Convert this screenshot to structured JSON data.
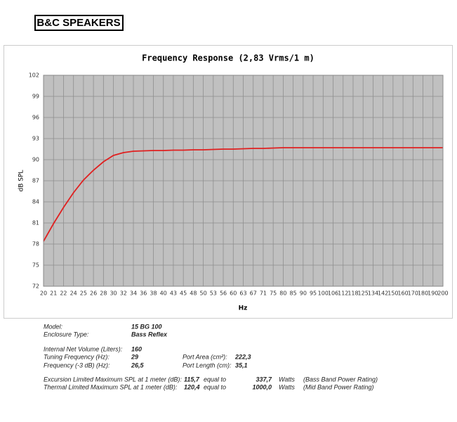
{
  "logo": "B&C SPEAKERS",
  "chart_data": {
    "type": "line",
    "title": "Frequency Response (2,83 Vrms/1 m)",
    "x_label": "Hz",
    "y_label": "dB SPL",
    "categories": [
      "20",
      "21",
      "22",
      "24",
      "25",
      "26",
      "28",
      "30",
      "32",
      "34",
      "36",
      "38",
      "40",
      "43",
      "45",
      "48",
      "50",
      "53",
      "56",
      "60",
      "63",
      "67",
      "71",
      "75",
      "80",
      "85",
      "90",
      "95",
      "100",
      "106",
      "112",
      "118",
      "125",
      "134",
      "142",
      "150",
      "160",
      "170",
      "180",
      "190",
      "200"
    ],
    "series": [
      {
        "name": "15 BG 100",
        "color": "#e02020",
        "values": [
          78.4,
          80.9,
          83.2,
          85.3,
          87.1,
          88.5,
          89.7,
          90.6,
          91.0,
          91.2,
          91.25,
          91.3,
          91.3,
          91.35,
          91.35,
          91.4,
          91.4,
          91.45,
          91.5,
          91.5,
          91.55,
          91.6,
          91.6,
          91.65,
          91.7,
          91.7,
          91.7,
          91.7,
          91.7,
          91.7,
          91.7,
          91.7,
          91.7,
          91.7,
          91.7,
          91.7,
          91.7,
          91.7,
          91.7,
          91.7,
          91.7
        ]
      }
    ],
    "ylim": [
      72,
      102
    ],
    "yticks": [
      72,
      75,
      78,
      81,
      84,
      87,
      90,
      93,
      96,
      99,
      102
    ],
    "grid": true,
    "legend": false
  },
  "specs": [
    [
      "Model:",
      "15 BG 100"
    ],
    [
      "Enclosure Type:",
      "Bass Reflex"
    ],
    [
      "Internal  Net Volume (Liters):",
      "160"
    ],
    [
      "Tuning Frequency (Hz):",
      "29",
      "Port Area (cm²):",
      "222,3"
    ],
    [
      "Frequency (-3 dB) (Hz):",
      "26,5",
      "Port Length (cm):",
      "35,1"
    ],
    [
      "Excursion Limited Maximum SPL at 1 meter (dB):",
      "115,7",
      "equal to",
      "337,7",
      "Watts",
      "(Bass Band Power Rating)"
    ],
    [
      "Thermal Limited Maximum SPL at 1 meter (dB):",
      "120,4",
      "equal to",
      "1000,0",
      "Watts",
      "(Mid Band Power Rating)"
    ]
  ]
}
